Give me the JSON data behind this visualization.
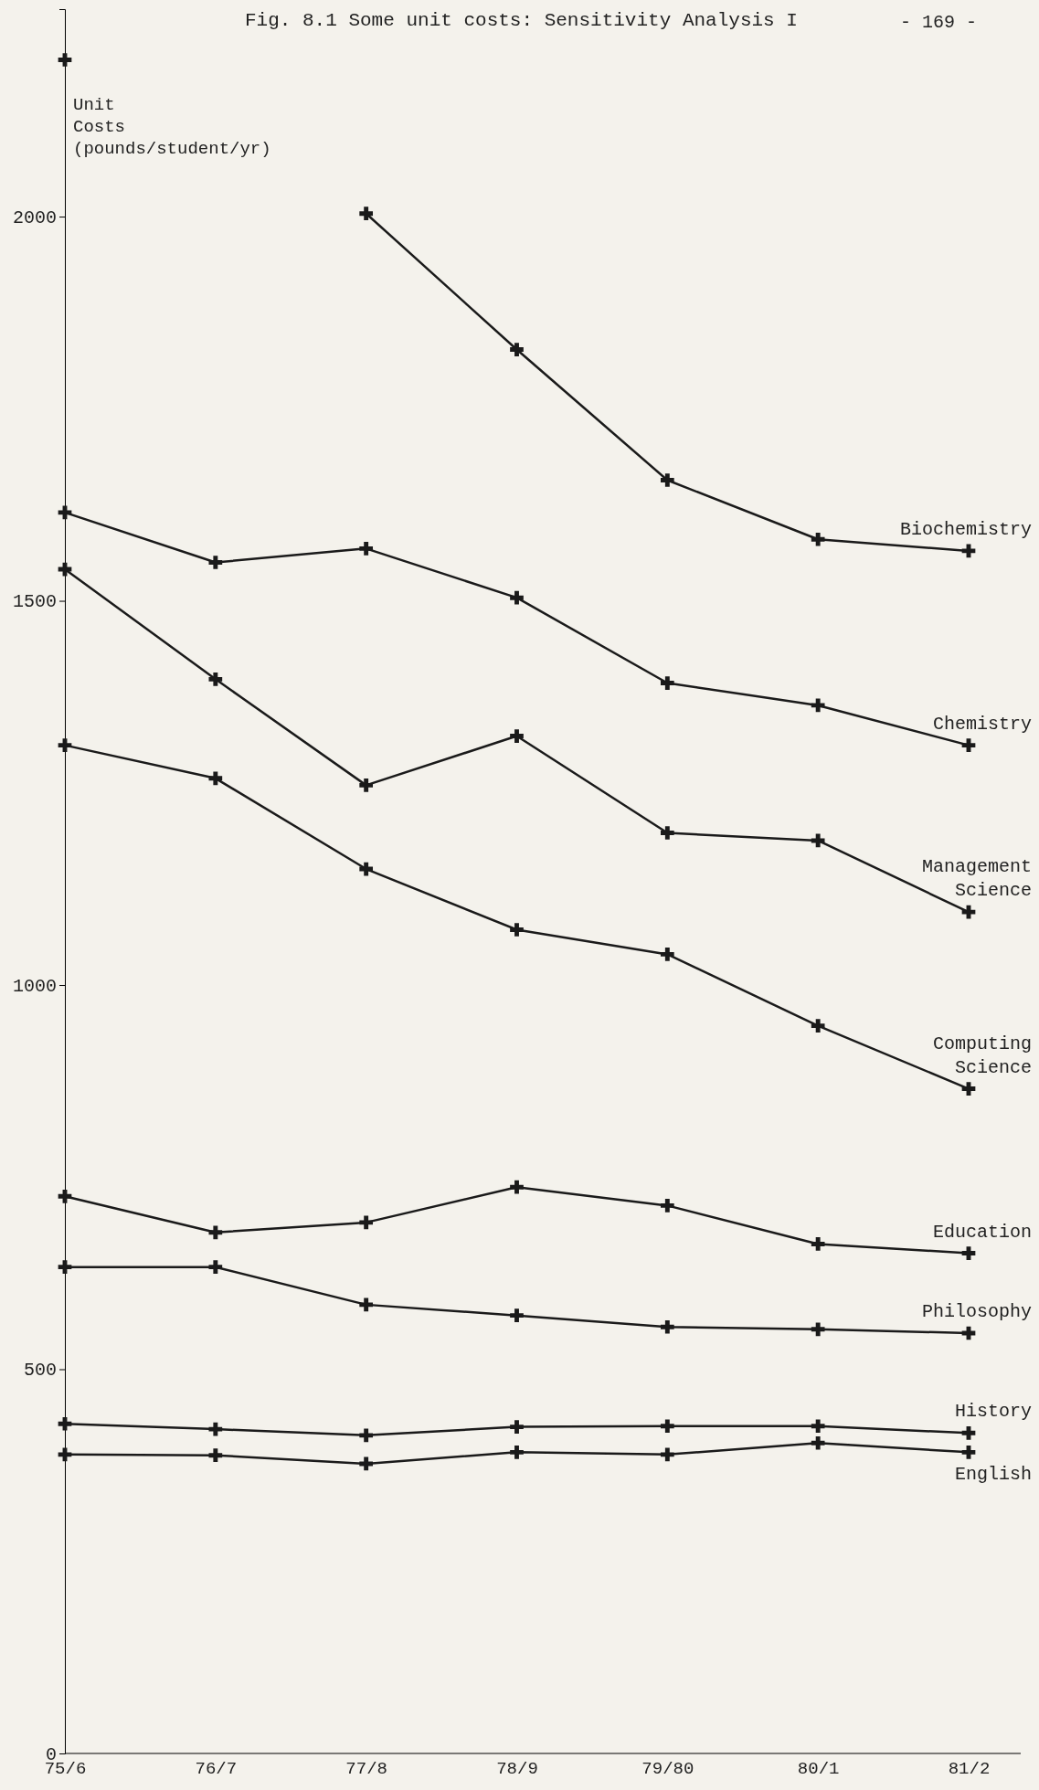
{
  "chart_data": {
    "type": "line",
    "title": "Fig. 8.1  Some unit costs: Sensitivity Analysis I",
    "ylabel": "Unit Costs (pounds/student/yr)",
    "annotations": [
      "- 169 -"
    ],
    "categories": [
      "75/6",
      "76/7",
      "77/8",
      "78/9",
      "79/80",
      "80/1",
      "81/2"
    ],
    "ylim": [
      0,
      2270
    ],
    "yticks": [
      0,
      500,
      1000,
      1500,
      2000
    ],
    "grid": false,
    "marker": "cross",
    "line_style": "solid",
    "series": [
      {
        "name": "Biochemistry",
        "color": "#1a1a1a",
        "values": [
          2204,
          null,
          2004,
          1827,
          1657,
          1580,
          1565
        ]
      },
      {
        "name": "Chemistry",
        "color": "#1a1a1a",
        "values": [
          1615,
          1550,
          1568,
          1504,
          1393,
          1364,
          1312
        ]
      },
      {
        "name": "Management Science",
        "color": "#1a1a1a",
        "values": [
          1541,
          1398,
          1260,
          1324,
          1198,
          1188,
          1095
        ]
      },
      {
        "name": "Computing Science",
        "color": "#1a1a1a",
        "values": [
          1312,
          1269,
          1151,
          1072,
          1040,
          947,
          865
        ]
      },
      {
        "name": "Education",
        "color": "#1a1a1a",
        "values": [
          725,
          678,
          691,
          737,
          713,
          663,
          651
        ]
      },
      {
        "name": "Philosophy",
        "color": "#1a1a1a",
        "values": [
          633,
          633,
          584,
          570,
          555,
          552,
          547
        ]
      },
      {
        "name": "History",
        "color": "#1a1a1a",
        "values": [
          429,
          422,
          414,
          425,
          426,
          426,
          417
        ]
      },
      {
        "name": "English",
        "color": "#1a1a1a",
        "values": [
          389,
          388,
          377,
          392,
          389,
          404,
          392
        ]
      }
    ]
  }
}
